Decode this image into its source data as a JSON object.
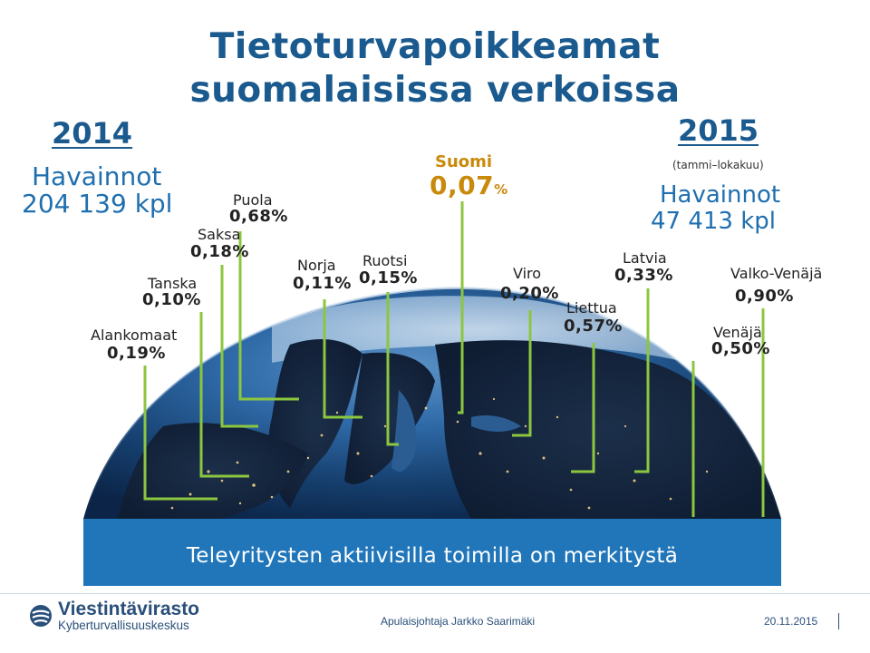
{
  "title_line1": "Tietoturvapoikkeamat",
  "title_line2": "suomalaisissa verkoissa",
  "left_stats": {
    "year": "2014",
    "label": "Havainnot",
    "value": "204 139 kpl"
  },
  "right_stats": {
    "year": "2015",
    "period": "(tammi–lokakuu)",
    "label": "Havainnot",
    "value": "47 413  kpl"
  },
  "countries": {
    "alankomaat": {
      "name": "Alankomaat",
      "pct": "0,19%"
    },
    "tanska": {
      "name": "Tanska",
      "pct": "0,10%"
    },
    "saksa": {
      "name": "Saksa",
      "pct": "0,18%"
    },
    "puola": {
      "name": "Puola",
      "pct": "0,68%"
    },
    "norja": {
      "name": "Norja",
      "pct": "0,11%"
    },
    "ruotsi": {
      "name": "Ruotsi",
      "pct": "0,15%"
    },
    "suomi": {
      "name": "Suomi",
      "pct": "0,07",
      "pct_unit": "%"
    },
    "viro": {
      "name": "Viro",
      "pct": "0,20%"
    },
    "liettua": {
      "name": "Liettua",
      "pct": "0,57%"
    },
    "latvia": {
      "name": "Latvia",
      "pct": "0,33%"
    },
    "valko_venaja": {
      "name": "Valko-Venäjä",
      "pct": "0,90%"
    },
    "venaja": {
      "name": "Venäjä",
      "pct": "0,50%"
    }
  },
  "banner_text": "Teleyritysten aktiivisilla toimilla on merkitystä",
  "footer": {
    "org_name": "Viestintävirasto",
    "org_sub": "Kyberturvallisuuskeskus",
    "presenter": "Apulaisjohtaja Jarkko Saarimäki",
    "date": "20.11.2015"
  },
  "colors": {
    "title": "#1a5a8e",
    "stat_blue": "#1f6fb0",
    "finland_gold": "#c98a0c",
    "leader_line": "#8cc63f",
    "banner": "#2176ba",
    "globe_dark": "#0e2a52"
  }
}
